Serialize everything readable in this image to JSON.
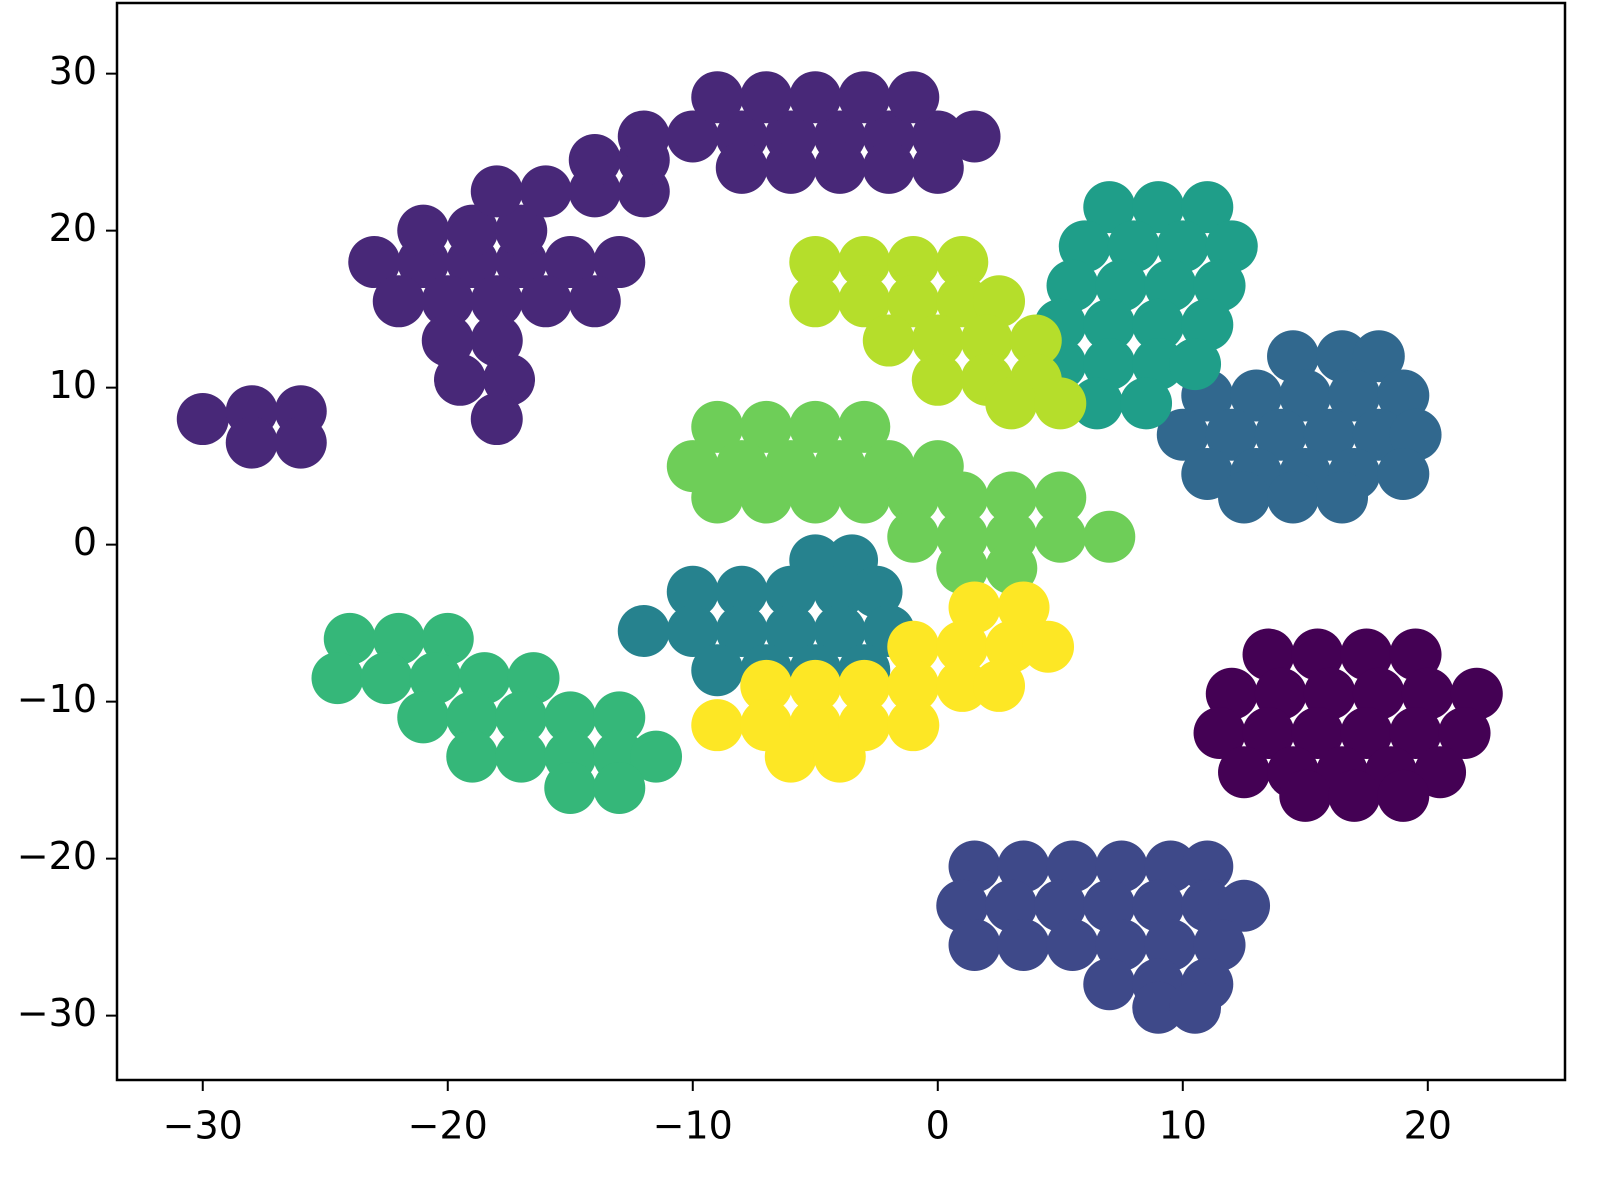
{
  "chart_data": {
    "type": "scatter",
    "xlim": [
      -33.5,
      25.6
    ],
    "ylim": [
      -34.1,
      34.5
    ],
    "xticks": [
      {
        "value": -30,
        "label": "−30"
      },
      {
        "value": -20,
        "label": "−20"
      },
      {
        "value": -10,
        "label": "−10"
      },
      0,
      10,
      20
    ],
    "yticks": [
      {
        "value": -30,
        "label": "−30"
      },
      {
        "value": -20,
        "label": "−20"
      },
      {
        "value": -10,
        "label": "−10"
      },
      0,
      10,
      20,
      30
    ],
    "grid": false,
    "series": [
      {
        "color": "#440154",
        "x": [
          13.5,
          15.5,
          17.5,
          19.5,
          12,
          14,
          16,
          18,
          20,
          22,
          11.5,
          13.5,
          15.5,
          17.5,
          19.5,
          21.5,
          12.5,
          14.5,
          16.5,
          18.5,
          20.5,
          15,
          17,
          19
        ],
        "y": [
          -7,
          -7,
          -7,
          -7,
          -9.5,
          -9.5,
          -9.5,
          -9.5,
          -9.5,
          -9.5,
          -12,
          -12,
          -12,
          -12,
          -12,
          -12,
          -14.5,
          -14.5,
          -14.5,
          -14.5,
          -14.5,
          -16,
          -16,
          -16
        ]
      },
      {
        "color": "#482878",
        "x": [
          -30,
          -28,
          -26,
          -28,
          -26,
          -23,
          -21,
          -19,
          -17,
          -15,
          -13,
          -21,
          -19,
          -17,
          -22,
          -20,
          -18,
          -16,
          -14,
          -20,
          -18,
          -19.5,
          -17.5,
          -18,
          -18,
          -16,
          -14,
          -12,
          -14,
          -12,
          -12,
          -10,
          -8,
          -6,
          -4,
          -2,
          0,
          1.5,
          -9,
          -7,
          -5,
          -3,
          -1,
          -8,
          -6,
          -4,
          -2,
          0
        ],
        "y": [
          8,
          8.5,
          8.5,
          6.5,
          6.5,
          18,
          18,
          18,
          18,
          18,
          18,
          20,
          20,
          20,
          15.5,
          15.5,
          15.5,
          15.5,
          15.5,
          13,
          13,
          10.5,
          10.5,
          8,
          22.5,
          22.5,
          22.5,
          22.5,
          24.5,
          24.5,
          26,
          26,
          26,
          26,
          26,
          26,
          26,
          26,
          28.5,
          28.5,
          28.5,
          28.5,
          28.5,
          24,
          24,
          24,
          24,
          24
        ]
      },
      {
        "color": "#3e4989",
        "x": [
          1.5,
          3.5,
          5.5,
          7.5,
          9.5,
          11,
          1,
          3,
          5,
          7,
          9,
          11,
          12.5,
          1.5,
          3.5,
          5.5,
          7.5,
          9.5,
          11.5,
          7,
          9,
          11,
          9,
          10.5
        ],
        "y": [
          -20.5,
          -20.5,
          -20.5,
          -20.5,
          -20.5,
          -20.5,
          -23,
          -23,
          -23,
          -23,
          -23,
          -23,
          -23,
          -25.5,
          -25.5,
          -25.5,
          -25.5,
          -25.5,
          -25.5,
          -28,
          -28,
          -28,
          -29.5,
          -29.5
        ]
      },
      {
        "color": "#31688e",
        "x": [
          14.5,
          16.5,
          18,
          11,
          13,
          15,
          17,
          19,
          10,
          12,
          14,
          16,
          18,
          19.5,
          11,
          13,
          15,
          17,
          19,
          12.5,
          14.5,
          16.5
        ],
        "y": [
          12,
          12,
          12,
          9.5,
          9.5,
          9.5,
          9.5,
          9.5,
          7,
          7,
          7,
          7,
          7,
          7,
          4.5,
          4.5,
          4.5,
          4.5,
          4.5,
          3,
          3,
          3
        ]
      },
      {
        "color": "#26828e",
        "x": [
          -5,
          -3.5,
          -10,
          -8,
          -6,
          -4,
          -2.5,
          -12,
          -10,
          -8,
          -6,
          -4,
          -2,
          -9,
          -7,
          -5,
          -3
        ],
        "y": [
          -1,
          -1,
          -3,
          -3,
          -3,
          -3,
          -3,
          -5.5,
          -5.5,
          -5.5,
          -5.5,
          -5.5,
          -5.5,
          -8,
          -8,
          -8,
          -8
        ]
      },
      {
        "color": "#1f9e89",
        "x": [
          7,
          9,
          11,
          6,
          8,
          10,
          12,
          5.5,
          7.5,
          9.5,
          11.5,
          5,
          7,
          9,
          11,
          5,
          7,
          9,
          10.5,
          6.5,
          8.5
        ],
        "y": [
          21.5,
          21.5,
          21.5,
          19,
          19,
          19,
          19,
          16.5,
          16.5,
          16.5,
          16.5,
          14,
          14,
          14,
          14,
          11.5,
          11.5,
          11.5,
          11.5,
          9,
          9
        ]
      },
      {
        "color": "#35b779",
        "x": [
          -24,
          -22,
          -20,
          -24.5,
          -22.5,
          -20.5,
          -18.5,
          -16.5,
          -21,
          -19,
          -17,
          -15,
          -13,
          -19,
          -17,
          -15,
          -13,
          -11.5,
          -15,
          -13
        ],
        "y": [
          -6,
          -6,
          -6,
          -8.5,
          -8.5,
          -8.5,
          -8.5,
          -8.5,
          -11,
          -11,
          -11,
          -11,
          -11,
          -13.5,
          -13.5,
          -13.5,
          -13.5,
          -13.5,
          -15.5,
          -15.5
        ]
      },
      {
        "color": "#6ece58",
        "x": [
          -9,
          -7,
          -5,
          -3,
          -10,
          -8,
          -6,
          -4,
          -2,
          0,
          -9,
          -7,
          -5,
          -3,
          -1,
          1,
          3,
          5,
          -1,
          1,
          3,
          5,
          7,
          1,
          3
        ],
        "y": [
          7.5,
          7.5,
          7.5,
          7.5,
          5,
          5,
          5,
          5,
          5,
          5,
          3,
          3,
          3,
          3,
          3,
          3,
          3,
          3,
          0.5,
          0.5,
          0.5,
          0.5,
          0.5,
          -1.5,
          -1.5
        ]
      },
      {
        "color": "#b5de2b",
        "x": [
          -5,
          -3,
          -1,
          1,
          -5,
          -3,
          -1,
          1,
          2.5,
          -2,
          0,
          2,
          4,
          0,
          2,
          4,
          3,
          5
        ],
        "y": [
          18,
          18,
          18,
          18,
          15.5,
          15.5,
          15.5,
          15.5,
          15.5,
          13,
          13,
          13,
          13,
          10.5,
          10.5,
          10.5,
          9,
          9
        ]
      },
      {
        "color": "#fde725",
        "x": [
          1.5,
          3.5,
          -1,
          1,
          3,
          4.5,
          -7,
          -5,
          -3,
          -1,
          1,
          2.5,
          -9,
          -7,
          -5,
          -3,
          -1,
          -6,
          -4
        ],
        "y": [
          -4,
          -4,
          -6.5,
          -6.5,
          -6.5,
          -6.5,
          -9,
          -9,
          -9,
          -9,
          -9,
          -9,
          -11.5,
          -11.5,
          -11.5,
          -11.5,
          -11.5,
          -13.5,
          -13.5
        ]
      }
    ]
  }
}
